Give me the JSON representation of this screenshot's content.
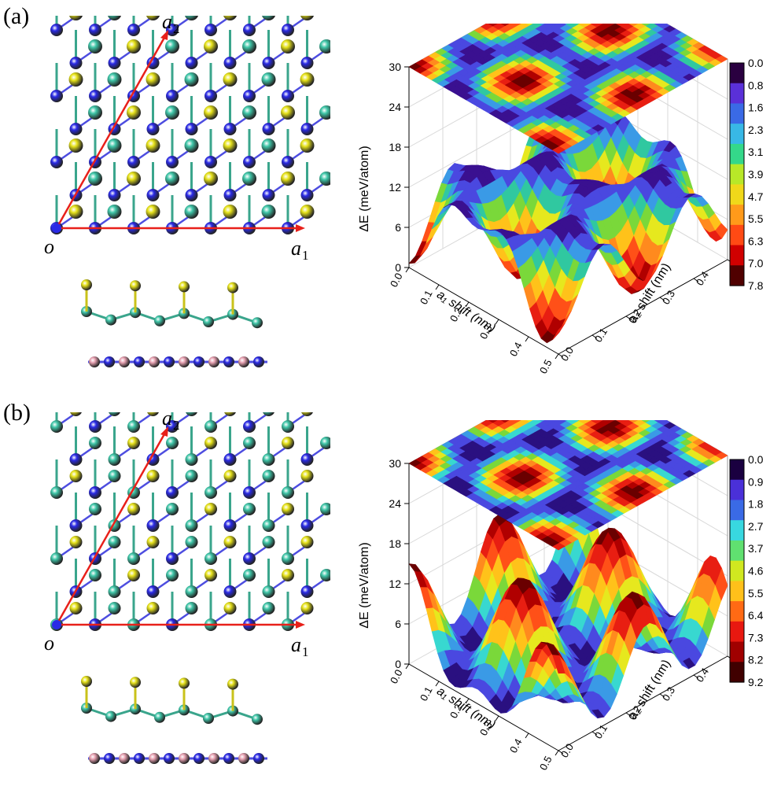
{
  "panels": [
    {
      "label": "(a)",
      "vectors": {
        "origin": "o",
        "a1": "a",
        "a1_sub": "1",
        "a2": "a",
        "a2_sub": "2"
      },
      "colorbar_ticks": [
        "0.0",
        "0.8",
        "1.6",
        "2.3",
        "3.1",
        "3.9",
        "4.7",
        "5.5",
        "6.3",
        "7.0",
        "7.8"
      ],
      "chart_data": {
        "type": "surface",
        "zlabel": "ΔE (meV/atom)",
        "xlabel": "a₁ shift (nm)",
        "ylabel": "a₂ shift (nm)",
        "z_ticks": [
          "0",
          "6",
          "12",
          "18",
          "24",
          "30"
        ],
        "x_ticks": [
          "0.0",
          "0.1",
          "0.2",
          "0.3",
          "0.4",
          "0.5"
        ],
        "y_ticks": [
          "0.0",
          "0.1",
          "0.2",
          "0.3",
          "0.4",
          "0.5"
        ],
        "xlim": [
          0,
          0.5
        ],
        "ylim": [
          0,
          0.5
        ],
        "zlim": [
          0,
          30
        ],
        "colorbar_range": [
          0.0,
          7.8
        ],
        "surface_form": "wells",
        "projection_z": 30,
        "grid": true
      }
    },
    {
      "label": "(b)",
      "vectors": {
        "origin": "o",
        "a1": "a",
        "a1_sub": "1",
        "a2": "a",
        "a2_sub": "2"
      },
      "colorbar_ticks": [
        "0.0",
        "0.9",
        "1.8",
        "2.7",
        "3.7",
        "4.6",
        "5.5",
        "6.4",
        "7.3",
        "8.2",
        "9.2"
      ],
      "chart_data": {
        "type": "surface",
        "zlabel": "ΔE (meV/atom)",
        "xlabel": "a₁ shift (nm)",
        "ylabel": "a₂ shift (nm)",
        "z_ticks": [
          "0",
          "6",
          "12",
          "18",
          "24",
          "30"
        ],
        "x_ticks": [
          "0.0",
          "0.1",
          "0.2",
          "0.3",
          "0.4",
          "0.5"
        ],
        "y_ticks": [
          "0.0",
          "0.1",
          "0.2",
          "0.3",
          "0.4",
          "0.5"
        ],
        "xlim": [
          0,
          0.5
        ],
        "ylim": [
          0,
          0.5
        ],
        "zlim": [
          0,
          30
        ],
        "colorbar_range": [
          0.0,
          9.2
        ],
        "surface_form": "peaks",
        "projection_z": 30,
        "grid": true
      }
    }
  ],
  "colors": {
    "atom_blue": "#2a2ae6",
    "atom_teal": "#3fc6a8",
    "atom_yellow": "#e6e21a",
    "atom_pink": "#e8a2b2",
    "vector_red": "#e8201a",
    "bond": "#3aa58c"
  }
}
